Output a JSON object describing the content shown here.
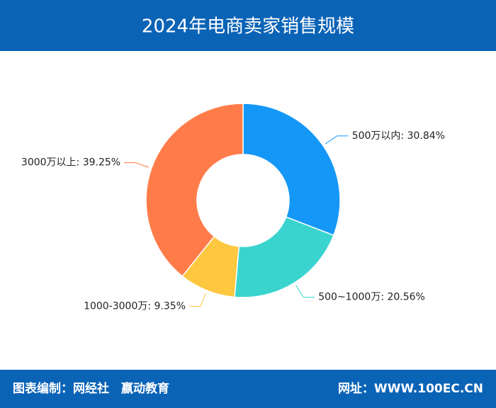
{
  "chart_data": {
    "type": "donut",
    "title": "2024年电商卖家销售规模",
    "values": [
      30.84,
      20.56,
      9.35,
      39.25
    ],
    "value_labels": [
      "500万以内: 30.84%",
      "500~1000万: 20.56%",
      "1000-3000万: 9.35%",
      "3000万以上: 39.25%"
    ],
    "colors": [
      "#1497f7",
      "#3ad4cf",
      "#fdc83f",
      "#ff7c4a"
    ]
  },
  "footer": {
    "credit": "图表编制：网经社　嬴动教育",
    "website": "网址：WWW.100EC.CN"
  }
}
